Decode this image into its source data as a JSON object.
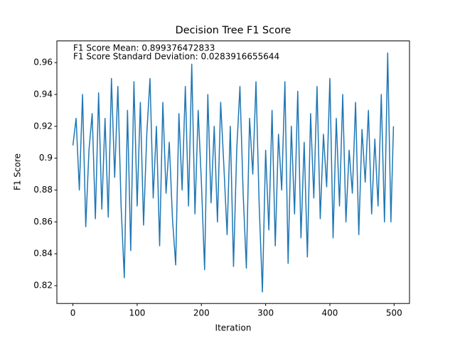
{
  "chart_data": {
    "type": "line",
    "title": "Decision Tree F1 Score",
    "xlabel": "Iteration",
    "ylabel": "F1 Score",
    "annotations": [
      "F1 Score Mean: 0.899376472833",
      "F1 Score Standard Deviation: 0.0283916655644"
    ],
    "x": [
      0,
      5,
      10,
      15,
      20,
      25,
      30,
      35,
      40,
      45,
      50,
      55,
      60,
      65,
      70,
      75,
      80,
      85,
      90,
      95,
      100,
      105,
      110,
      115,
      120,
      125,
      130,
      135,
      140,
      145,
      150,
      155,
      160,
      165,
      170,
      175,
      180,
      185,
      190,
      195,
      200,
      205,
      210,
      215,
      220,
      225,
      230,
      235,
      240,
      245,
      250,
      255,
      260,
      265,
      270,
      275,
      280,
      285,
      290,
      295,
      300,
      305,
      310,
      315,
      320,
      325,
      330,
      335,
      340,
      345,
      350,
      355,
      360,
      365,
      370,
      375,
      380,
      385,
      390,
      395,
      400,
      405,
      410,
      415,
      420,
      425,
      430,
      435,
      440,
      445,
      450,
      455,
      460,
      465,
      470,
      475,
      480,
      485,
      490,
      495,
      499
    ],
    "series": [
      {
        "name": "F1 Score",
        "color": "#1f77b4",
        "values": [
          0.908,
          0.925,
          0.88,
          0.94,
          0.857,
          0.905,
          0.928,
          0.862,
          0.941,
          0.868,
          0.925,
          0.863,
          0.95,
          0.888,
          0.945,
          0.87,
          0.825,
          0.93,
          0.842,
          0.948,
          0.87,
          0.935,
          0.858,
          0.915,
          0.95,
          0.875,
          0.92,
          0.845,
          0.935,
          0.878,
          0.91,
          0.862,
          0.833,
          0.928,
          0.88,
          0.945,
          0.87,
          0.959,
          0.865,
          0.93,
          0.885,
          0.83,
          0.94,
          0.872,
          0.92,
          0.86,
          0.935,
          0.895,
          0.852,
          0.92,
          0.832,
          0.905,
          0.945,
          0.878,
          0.831,
          0.925,
          0.89,
          0.948,
          0.87,
          0.816,
          0.905,
          0.855,
          0.93,
          0.845,
          0.915,
          0.88,
          0.948,
          0.834,
          0.92,
          0.865,
          0.942,
          0.85,
          0.91,
          0.838,
          0.928,
          0.875,
          0.945,
          0.862,
          0.915,
          0.882,
          0.95,
          0.85,
          0.925,
          0.87,
          0.94,
          0.86,
          0.905,
          0.878,
          0.935,
          0.852,
          0.918,
          0.885,
          0.93,
          0.865,
          0.912,
          0.87,
          0.94,
          0.86,
          0.966,
          0.86,
          0.92
        ]
      }
    ],
    "xlim": [
      -24.95,
      523.95
    ],
    "ylim": [
      0.8088,
      0.9736
    ],
    "xticks": [
      0,
      100,
      200,
      300,
      400,
      500
    ],
    "yticks": [
      0.82,
      0.84,
      0.86,
      0.88,
      0.9,
      0.92,
      0.94,
      0.96
    ]
  }
}
